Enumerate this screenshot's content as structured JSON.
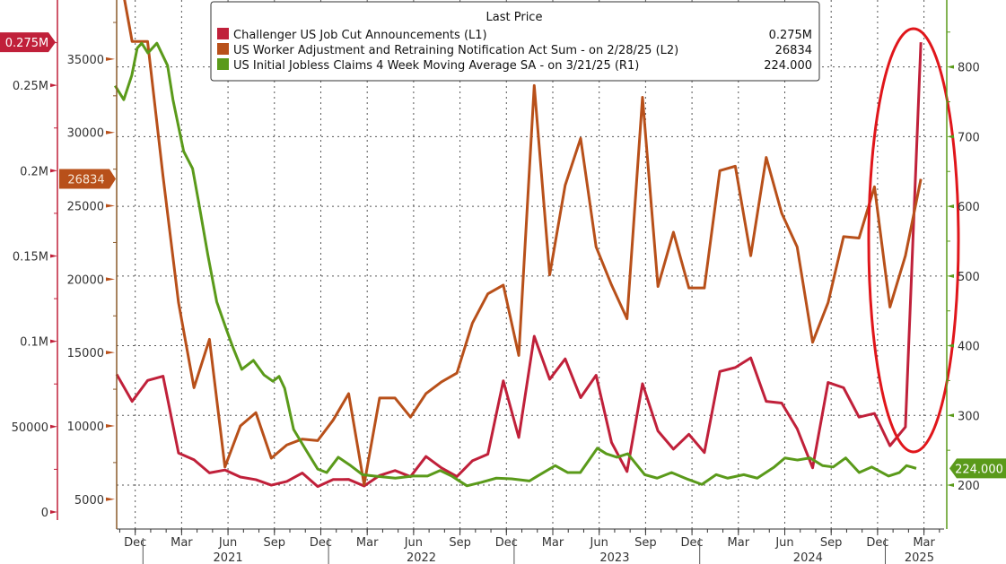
{
  "chart_data": {
    "type": "line",
    "legend": {
      "title": "Last Price",
      "position": "top-center",
      "entries": [
        {
          "label": "Challenger US Job Cut Announcements  (L1)",
          "value": "0.275M",
          "color": "#c0203a"
        },
        {
          "label": "US Worker Adjustment and Retraining Notification Act Sum -  on 2/28/25  (L2)",
          "value": "26834",
          "color": "#b8501a"
        },
        {
          "label": "US Initial Jobless Claims 4 Week Moving Average SA -  on 3/21/25  (R1)",
          "value": "224.000",
          "color": "#5a9a1a"
        }
      ]
    },
    "x_unit": "months since Oct 2020",
    "xlim": [
      0,
      53.5
    ],
    "month_labels": [
      {
        "m": 1.2,
        "label": "Dec"
      },
      {
        "m": 4.2,
        "label": "Mar"
      },
      {
        "m": 7.2,
        "label": "Jun"
      },
      {
        "m": 10.2,
        "label": "Sep"
      },
      {
        "m": 13.2,
        "label": "Dec"
      },
      {
        "m": 16.2,
        "label": "Mar"
      },
      {
        "m": 19.2,
        "label": "Jun"
      },
      {
        "m": 22.2,
        "label": "Sep"
      },
      {
        "m": 25.2,
        "label": "Dec"
      },
      {
        "m": 28.2,
        "label": "Mar"
      },
      {
        "m": 31.2,
        "label": "Jun"
      },
      {
        "m": 34.2,
        "label": "Sep"
      },
      {
        "m": 37.2,
        "label": "Dec"
      },
      {
        "m": 40.2,
        "label": "Mar"
      },
      {
        "m": 43.2,
        "label": "Jun"
      },
      {
        "m": 46.2,
        "label": "Sep"
      },
      {
        "m": 49.2,
        "label": "Dec"
      },
      {
        "m": 52.2,
        "label": "Mar"
      }
    ],
    "year_labels": [
      {
        "m": 7.2,
        "label": "2021",
        "divider": 1.7
      },
      {
        "m": 19.7,
        "label": "2022",
        "divider": 13.7
      },
      {
        "m": 32.2,
        "label": "2023",
        "divider": 25.7
      },
      {
        "m": 44.7,
        "label": "2024",
        "divider": 37.7
      },
      {
        "m": 51.9,
        "label": "2025",
        "divider": 49.7
      }
    ],
    "axes": {
      "L1": {
        "ylim": [
          -10000,
          300000
        ],
        "ticks": [
          {
            "v": 0,
            "label": "0"
          },
          {
            "v": 50000,
            "label": "50000"
          },
          {
            "v": 100000,
            "label": "0.1M"
          },
          {
            "v": 150000,
            "label": "0.15M"
          },
          {
            "v": 200000,
            "label": "0.2M"
          },
          {
            "v": 250000,
            "label": "0.25M"
          }
        ],
        "last_tag": "0.275M",
        "last_value": 275240,
        "color": "#c0203a"
      },
      "L2": {
        "ylim": [
          2970,
          39030
        ],
        "ticks": [
          {
            "v": 5000,
            "label": "5000"
          },
          {
            "v": 10000,
            "label": "10000"
          },
          {
            "v": 15000,
            "label": "15000"
          },
          {
            "v": 20000,
            "label": "20000"
          },
          {
            "v": 25000,
            "label": "25000"
          },
          {
            "v": 30000,
            "label": "30000"
          },
          {
            "v": 35000,
            "label": "35000"
          }
        ],
        "last_tag": "26834",
        "last_value": 26834,
        "color": "#b8501a"
      },
      "R1": {
        "ylim": [
          137,
          896
        ],
        "ticks": [
          {
            "v": 200,
            "label": "200"
          },
          {
            "v": 300,
            "label": "300"
          },
          {
            "v": 400,
            "label": "400"
          },
          {
            "v": 500,
            "label": "500"
          },
          {
            "v": 600,
            "label": "600"
          },
          {
            "v": 700,
            "label": "700"
          },
          {
            "v": 800,
            "label": "800"
          }
        ],
        "last_tag": "224.000",
        "last_value": 224,
        "color": "#5a9a1a"
      }
    },
    "grid": true,
    "series": [
      {
        "name": "Challenger US Job Cut Announcements",
        "axis": "L1",
        "color": "#c0203a",
        "start_m": 0,
        "values": [
          80666,
          64797,
          77030,
          79552,
          34531,
          30603,
          22913,
          24586,
          20476,
          18942,
          15723,
          17895,
          22822,
          14875,
          19052,
          19064,
          15245,
          21387,
          24286,
          20712,
          32517,
          25810,
          20781,
          29989,
          33843,
          76835,
          43651,
          102943,
          77770,
          89703,
          66995,
          80089,
          40709,
          23697,
          75151,
          47457,
          36836,
          45510,
          34817,
          82307,
          84638,
          90309,
          64789,
          63816,
          48786,
          25885,
          75891,
          72821,
          55597,
          57727,
          38792,
          49795,
          275240
        ]
      },
      {
        "name": "US Worker Adjustment and Retraining Notification Act Sum",
        "axis": "L2",
        "color": "#b8501a",
        "start_m": 0,
        "values": [
          42000,
          36200,
          36200,
          27000,
          18400,
          12600,
          15900,
          7200,
          10000,
          10900,
          7800,
          8700,
          9100,
          9000,
          10400,
          12200,
          6000,
          11900,
          11900,
          10600,
          12200,
          13000,
          13600,
          17000,
          19000,
          19600,
          14800,
          33200,
          20300,
          26400,
          29600,
          22200,
          19600,
          17300,
          32400,
          19500,
          23200,
          19400,
          19400,
          27400,
          27700,
          21600,
          28300,
          24500,
          22200,
          15700,
          18400,
          22900,
          22800,
          26300,
          18100,
          21600,
          26834
        ]
      },
      {
        "name": "US Initial Jobless Claims 4 Week Moving Average SA",
        "axis": "R1",
        "color": "#5a9a1a",
        "points": [
          [
            -0.1,
            773
          ],
          [
            0.46,
            753
          ],
          [
            0.98,
            788
          ],
          [
            1.33,
            827
          ],
          [
            1.62,
            834
          ],
          [
            2.02,
            820
          ],
          [
            2.6,
            834
          ],
          [
            3.29,
            802
          ],
          [
            3.64,
            753
          ],
          [
            4.33,
            679
          ],
          [
            4.91,
            654
          ],
          [
            5.31,
            605
          ],
          [
            5.89,
            531
          ],
          [
            6.47,
            463
          ],
          [
            7.1,
            423
          ],
          [
            7.51,
            398
          ],
          [
            8.09,
            366
          ],
          [
            8.84,
            379
          ],
          [
            9.53,
            358
          ],
          [
            10.1,
            349
          ],
          [
            10.5,
            356
          ],
          [
            10.86,
            339
          ],
          [
            11.44,
            280
          ],
          [
            12.25,
            250
          ],
          [
            13,
            223
          ],
          [
            13.58,
            218
          ],
          [
            14.33,
            240
          ],
          [
            15.13,
            228
          ],
          [
            15.89,
            215
          ],
          [
            16.64,
            213
          ],
          [
            18.02,
            210
          ],
          [
            19.18,
            213
          ],
          [
            20.1,
            213
          ],
          [
            20.91,
            221
          ],
          [
            21.66,
            213
          ],
          [
            22.65,
            199
          ],
          [
            23.57,
            204
          ],
          [
            24.55,
            210
          ],
          [
            25.53,
            209
          ],
          [
            26.69,
            206
          ],
          [
            27.21,
            213
          ],
          [
            28.36,
            228
          ],
          [
            29.17,
            218
          ],
          [
            29.98,
            218
          ],
          [
            31.08,
            253
          ],
          [
            31.66,
            245
          ],
          [
            32.35,
            240
          ],
          [
            33.05,
            245
          ],
          [
            34.14,
            215
          ],
          [
            34.95,
            210
          ],
          [
            35.88,
            218
          ],
          [
            36.86,
            209
          ],
          [
            37.84,
            201
          ],
          [
            38.76,
            215
          ],
          [
            39.51,
            210
          ],
          [
            40.55,
            215
          ],
          [
            41.42,
            210
          ],
          [
            42.52,
            226
          ],
          [
            43.21,
            239
          ],
          [
            44.02,
            236
          ],
          [
            44.83,
            239
          ],
          [
            45.64,
            228
          ],
          [
            46.33,
            226
          ],
          [
            47.14,
            239
          ],
          [
            48.01,
            218
          ],
          [
            48.82,
            226
          ],
          [
            49.91,
            213
          ],
          [
            50.61,
            218
          ],
          [
            51.07,
            228
          ],
          [
            51.7,
            224
          ]
        ]
      }
    ],
    "annotation": {
      "type": "ellipse",
      "color": "#e0161b",
      "around": "Dec 2024 - Mar 2025 spike"
    }
  }
}
